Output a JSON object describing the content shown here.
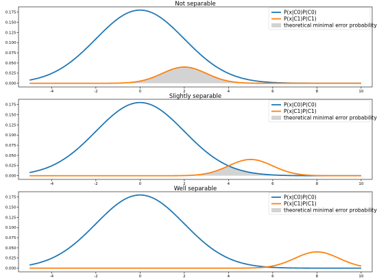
{
  "chart_data": [
    {
      "type": "line",
      "title": "Not separable",
      "xlabel": "",
      "ylabel": "",
      "xlim": [
        -5.5,
        10.5
      ],
      "ylim": [
        -0.009,
        0.188
      ],
      "x_ticks": [
        -4,
        -2,
        0,
        2,
        4,
        6,
        8,
        10
      ],
      "x_tick_labels": [
        "-4",
        "-2",
        "0",
        "2",
        "4",
        "6",
        "8",
        "10"
      ],
      "y_ticks": [
        0.0,
        0.025,
        0.05,
        0.075,
        0.1,
        0.125,
        0.15,
        0.175
      ],
      "y_tick_labels": [
        "0.000",
        "0.025",
        "0.050",
        "0.075",
        "0.100",
        "0.125",
        "0.150",
        "0.175"
      ],
      "x_range": [
        -5,
        10
      ],
      "legend_position": "top-right",
      "grid": false,
      "series": [
        {
          "name": "P(x|C0)P(C0)",
          "color": "#1f77b4",
          "peak_x": 0,
          "peak_y": 0.18,
          "sigma": 2.0
        },
        {
          "name": "P(x|C1)P(C1)",
          "color": "#ff7f0e",
          "peak_x": 2,
          "peak_y": 0.04,
          "sigma": 1.0
        }
      ],
      "fill": {
        "name": "theoretical minimal error probability",
        "color": "#d3d3d3"
      }
    },
    {
      "type": "line",
      "title": "Slightly separable",
      "xlabel": "",
      "ylabel": "",
      "xlim": [
        -5.5,
        10.5
      ],
      "ylim": [
        -0.009,
        0.188
      ],
      "x_ticks": [
        -4,
        -2,
        0,
        2,
        4,
        6,
        8,
        10
      ],
      "x_tick_labels": [
        "-4",
        "-2",
        "0",
        "2",
        "4",
        "6",
        "8",
        "10"
      ],
      "y_ticks": [
        0.0,
        0.025,
        0.05,
        0.075,
        0.1,
        0.125,
        0.15,
        0.175
      ],
      "y_tick_labels": [
        "0.000",
        "0.025",
        "0.050",
        "0.075",
        "0.100",
        "0.125",
        "0.150",
        "0.175"
      ],
      "x_range": [
        -5,
        10
      ],
      "legend_position": "top-right",
      "grid": false,
      "series": [
        {
          "name": "P(x|C0)P(C0)",
          "color": "#1f77b4",
          "peak_x": 0,
          "peak_y": 0.18,
          "sigma": 2.0
        },
        {
          "name": "P(x|C1)P(C1)",
          "color": "#ff7f0e",
          "peak_x": 5,
          "peak_y": 0.04,
          "sigma": 1.0
        }
      ],
      "fill": {
        "name": "theoretical minimal error probability",
        "color": "#d3d3d3"
      }
    },
    {
      "type": "line",
      "title": "Well separable",
      "xlabel": "",
      "ylabel": "",
      "xlim": [
        -5.5,
        10.5
      ],
      "ylim": [
        -0.009,
        0.188
      ],
      "x_ticks": [
        -4,
        -2,
        0,
        2,
        4,
        6,
        8,
        10
      ],
      "x_tick_labels": [
        "-4",
        "-2",
        "0",
        "2",
        "4",
        "6",
        "8",
        "10"
      ],
      "y_ticks": [
        0.0,
        0.025,
        0.05,
        0.075,
        0.1,
        0.125,
        0.15,
        0.175
      ],
      "y_tick_labels": [
        "0.000",
        "0.025",
        "0.050",
        "0.075",
        "0.100",
        "0.125",
        "0.150",
        "0.175"
      ],
      "x_range": [
        -5,
        10
      ],
      "legend_position": "top-right",
      "grid": false,
      "series": [
        {
          "name": "P(x|C0)P(C0)",
          "color": "#1f77b4",
          "peak_x": 0,
          "peak_y": 0.18,
          "sigma": 2.0
        },
        {
          "name": "P(x|C1)P(C1)",
          "color": "#ff7f0e",
          "peak_x": 8,
          "peak_y": 0.04,
          "sigma": 1.0
        }
      ],
      "fill": {
        "name": "theoretical minimal error probability",
        "color": "#d3d3d3"
      }
    }
  ]
}
